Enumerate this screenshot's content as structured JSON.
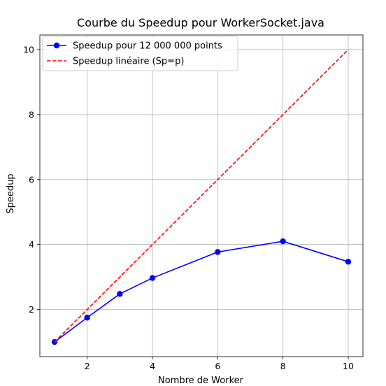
{
  "chart_data": {
    "type": "line",
    "title": "Courbe du Speedup pour WorkerSocket.java",
    "xlabel": "Nombre de Worker",
    "ylabel": "Speedup",
    "xlim": [
      0.55,
      10.45
    ],
    "ylim": [
      0.55,
      10.45
    ],
    "x_ticks": [
      2,
      4,
      6,
      8,
      10
    ],
    "y_ticks": [
      2,
      4,
      6,
      8,
      10
    ],
    "grid": true,
    "legend_position": "top-left",
    "series": [
      {
        "name": "Speedup pour 12 000 000 points",
        "color": "#0000ff",
        "style": "solid",
        "marker": "circle",
        "x": [
          1,
          2,
          3,
          4,
          6,
          8,
          10
        ],
        "y": [
          1.0,
          1.75,
          2.48,
          2.97,
          3.77,
          4.1,
          3.47
        ]
      },
      {
        "name": "Speedup linéaire (Sp=p)",
        "color": "#ff0000",
        "style": "dashed",
        "marker": "none",
        "x": [
          1,
          10
        ],
        "y": [
          1,
          10
        ]
      }
    ]
  }
}
